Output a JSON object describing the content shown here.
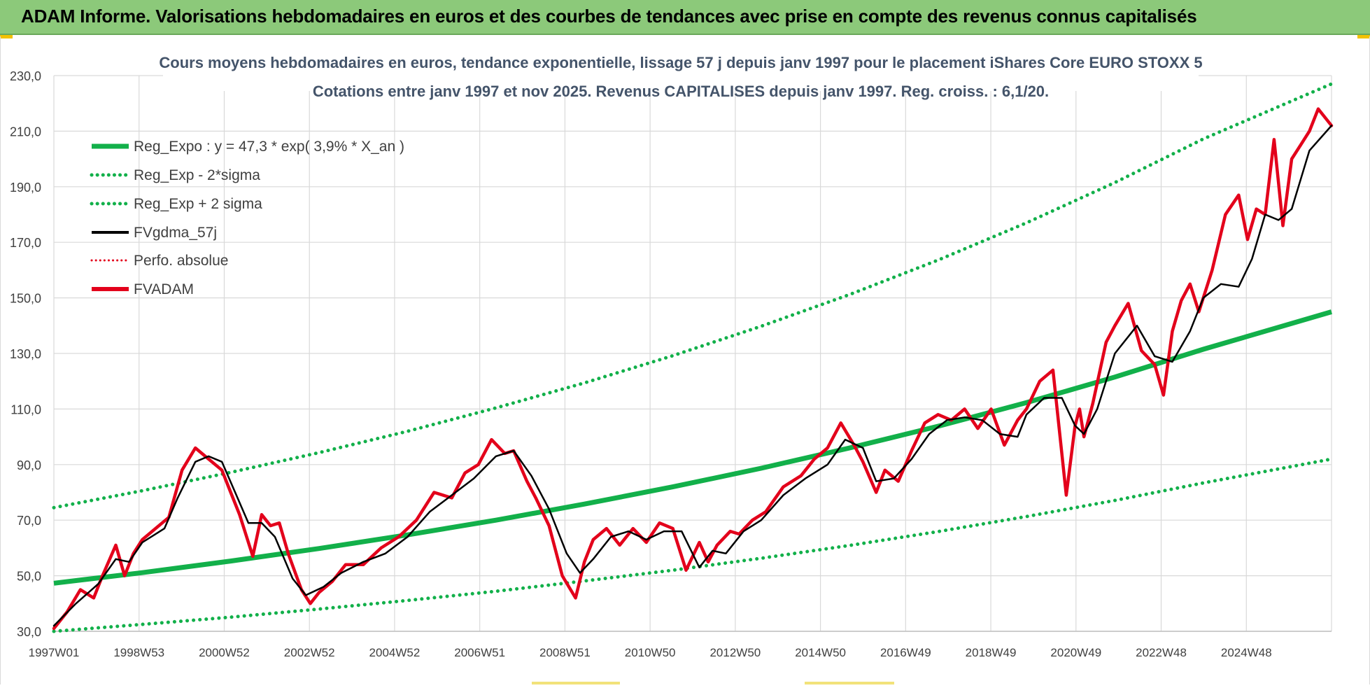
{
  "header": {
    "title": "ADAM Informe. Valorisations hebdomadaires en euros et des courbes de tendances avec prise en compte des revenus connus capitalisés"
  },
  "colors": {
    "banner": "#8cc97a",
    "reg_expo": "#12b04a",
    "sigma_lines": "#12b04a",
    "fvgdma": "#000000",
    "perfo": "#e3001b",
    "fvadam": "#e3001b",
    "grid": "#d9d9d9",
    "text": "#404040"
  },
  "chart_data": {
    "type": "line",
    "title": "Cours moyens hebdomadaires en euros, tendance exponentielle, lissage 57 j depuis janv 1997 pour le placement iShares Core EURO STOXX 5",
    "subtitle": "Cotations entre janv 1997 et nov 2025. Revenus CAPITALISES depuis janv 1997. Reg. croiss. : 6,1/20.",
    "xlabel": "",
    "ylabel": "",
    "xlim": [
      1997.0,
      2025.9
    ],
    "ylim": [
      30,
      230
    ],
    "yticks": [
      "30,0",
      "50,0",
      "70,0",
      "90,0",
      "110,0",
      "130,0",
      "150,0",
      "170,0",
      "190,0",
      "210,0",
      "230,0"
    ],
    "xtick_labels": [
      "1997W01",
      "1998W53",
      "2000W52",
      "2002W52",
      "2004W52",
      "2006W51",
      "2008W51",
      "2010W50",
      "2012W50",
      "2014W50",
      "2016W49",
      "2018W49",
      "2020W49",
      "2022W48",
      "2024W48"
    ],
    "grid": true,
    "legend_position": "top-left",
    "legend": [
      {
        "label": "Reg_Expo : y = 47,3 * exp( 3,9% *  X_an )",
        "style": "solid-thick",
        "color": "#12b04a"
      },
      {
        "label": "Reg_Exp - 2*sigma",
        "style": "dotted",
        "color": "#12b04a"
      },
      {
        "label": "Reg_Exp + 2 sigma",
        "style": "dotted",
        "color": "#12b04a"
      },
      {
        "label": "FVgdma_57j",
        "style": "solid",
        "color": "#000000"
      },
      {
        "label": "Perfo. absolue",
        "style": "dotted",
        "color": "#e3001b"
      },
      {
        "label": "FVADAM",
        "style": "solid-thick",
        "color": "#e3001b"
      }
    ],
    "series": [
      {
        "name": "Reg_Expo",
        "x": [
          1997.0,
          1999.0,
          2001.0,
          2003.0,
          2005.0,
          2007.0,
          2009.0,
          2011.0,
          2013.0,
          2015.0,
          2017.0,
          2019.0,
          2021.0,
          2023.0,
          2025.9
        ],
        "y": [
          47.3,
          51.1,
          55.3,
          59.8,
          64.7,
          70.0,
          75.8,
          82.0,
          88.7,
          96.0,
          103.8,
          112.3,
          121.5,
          131.5,
          145.0
        ]
      },
      {
        "name": "Reg_Exp - 2*sigma",
        "x": [
          1997.0,
          1999.0,
          2001.0,
          2003.0,
          2005.0,
          2007.0,
          2009.0,
          2011.0,
          2013.0,
          2015.0,
          2017.0,
          2019.0,
          2021.0,
          2023.0,
          2025.9
        ],
        "y": [
          30.0,
          32.5,
          35.1,
          38.0,
          41.1,
          44.4,
          48.1,
          52.0,
          56.3,
          60.9,
          65.9,
          71.3,
          77.1,
          83.4,
          92.0
        ]
      },
      {
        "name": "Reg_Exp + 2 sigma",
        "x": [
          1997.0,
          1999.0,
          2001.0,
          2003.0,
          2005.0,
          2007.0,
          2009.0,
          2011.0,
          2013.0,
          2015.0,
          2017.0,
          2019.0,
          2021.0,
          2023.0,
          2025.9
        ],
        "y": [
          74.5,
          80.6,
          87.2,
          94.3,
          102.0,
          110.4,
          119.4,
          129.2,
          139.8,
          151.2,
          163.6,
          177.0,
          191.5,
          207.2,
          227.0
        ]
      },
      {
        "name": "FVgdma_57j",
        "x": [
          1997.0,
          1997.5,
          1998.0,
          1998.4,
          1998.7,
          1999.0,
          1999.5,
          1999.8,
          2000.2,
          2000.5,
          2000.8,
          2001.1,
          2001.4,
          2001.7,
          2002.0,
          2002.4,
          2002.7,
          2003.1,
          2003.5,
          2004.0,
          2004.5,
          2005.0,
          2005.5,
          2006.0,
          2006.5,
          2007.0,
          2007.4,
          2007.8,
          2008.2,
          2008.6,
          2008.9,
          2009.2,
          2009.6,
          2010.0,
          2010.4,
          2010.8,
          2011.2,
          2011.6,
          2011.9,
          2012.2,
          2012.6,
          2013.0,
          2013.5,
          2014.0,
          2014.5,
          2014.9,
          2015.3,
          2015.6,
          2016.0,
          2016.4,
          2016.8,
          2017.2,
          2017.6,
          2018.0,
          2018.4,
          2018.8,
          2019.0,
          2019.4,
          2019.8,
          2020.1,
          2020.3,
          2020.6,
          2021.0,
          2021.5,
          2021.9,
          2022.3,
          2022.7,
          2023.0,
          2023.4,
          2023.8,
          2024.1,
          2024.4,
          2024.7,
          2025.0,
          2025.4,
          2025.9
        ],
        "y": [
          32,
          40,
          47,
          56,
          55,
          62,
          67,
          78,
          91,
          93,
          91,
          80,
          69,
          69,
          64,
          49,
          43,
          46,
          51,
          55,
          58,
          64,
          73,
          79,
          85,
          93,
          95,
          86,
          74,
          58,
          51,
          56,
          64,
          66,
          63,
          66,
          66,
          53,
          59,
          58,
          66,
          70,
          79,
          85,
          90,
          99,
          96,
          84,
          85,
          92,
          101,
          106,
          107,
          106,
          101,
          100,
          108,
          114,
          114,
          104,
          101,
          110,
          130,
          140,
          129,
          127,
          138,
          150,
          155,
          154,
          164,
          180,
          178,
          182,
          203,
          212
        ]
      },
      {
        "name": "FVADAM",
        "x": [
          1997.0,
          1997.3,
          1997.6,
          1997.9,
          1998.1,
          1998.4,
          1998.6,
          1998.8,
          1999.0,
          1999.3,
          1999.6,
          1999.9,
          2000.2,
          2000.5,
          2000.8,
          2001.0,
          2001.2,
          2001.5,
          2001.7,
          2001.9,
          2002.1,
          2002.3,
          2002.6,
          2002.8,
          2003.0,
          2003.3,
          2003.6,
          2004.0,
          2004.4,
          2004.8,
          2005.2,
          2005.6,
          2006.0,
          2006.3,
          2006.6,
          2006.9,
          2007.2,
          2007.4,
          2007.7,
          2007.9,
          2008.2,
          2008.5,
          2008.8,
          2009.0,
          2009.2,
          2009.5,
          2009.8,
          2010.1,
          2010.4,
          2010.7,
          2011.0,
          2011.3,
          2011.6,
          2011.8,
          2012.0,
          2012.3,
          2012.5,
          2012.8,
          2013.1,
          2013.5,
          2013.9,
          2014.2,
          2014.5,
          2014.8,
          2015.1,
          2015.3,
          2015.6,
          2015.8,
          2016.1,
          2016.4,
          2016.7,
          2017.0,
          2017.3,
          2017.6,
          2017.9,
          2018.2,
          2018.5,
          2018.8,
          2019.0,
          2019.3,
          2019.6,
          2019.9,
          2020.1,
          2020.2,
          2020.3,
          2020.5,
          2020.8,
          2021.0,
          2021.3,
          2021.6,
          2021.9,
          2022.1,
          2022.3,
          2022.5,
          2022.7,
          2022.9,
          2023.2,
          2023.5,
          2023.8,
          2024.0,
          2024.2,
          2024.4,
          2024.6,
          2024.8,
          2025.0,
          2025.2,
          2025.4,
          2025.6,
          2025.9
        ],
        "y": [
          31,
          37,
          45,
          42,
          50,
          61,
          50,
          58,
          63,
          67,
          71,
          88,
          96,
          92,
          88,
          80,
          72,
          57,
          72,
          68,
          69,
          58,
          45,
          40,
          44,
          48,
          54,
          54,
          60,
          64,
          70,
          80,
          78,
          87,
          90,
          99,
          94,
          95,
          84,
          78,
          68,
          50,
          42,
          55,
          63,
          67,
          61,
          67,
          62,
          69,
          67,
          52,
          62,
          55,
          61,
          66,
          65,
          70,
          73,
          82,
          86,
          92,
          96,
          105,
          97,
          91,
          80,
          88,
          84,
          95,
          105,
          108,
          106,
          110,
          103,
          110,
          97,
          106,
          110,
          120,
          124,
          79,
          104,
          110,
          100,
          112,
          134,
          140,
          148,
          131,
          126,
          115,
          138,
          149,
          155,
          145,
          160,
          180,
          187,
          171,
          182,
          180,
          207,
          176,
          200,
          205,
          210,
          218,
          212
        ]
      }
    ]
  }
}
